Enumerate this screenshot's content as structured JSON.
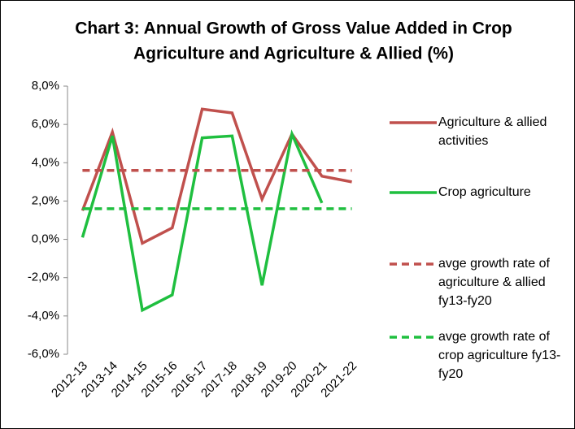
{
  "chart_data": {
    "type": "line",
    "title": [
      "Chart 3: Annual Growth of Gross Value Added in Crop",
      "Agriculture and Agriculture & Allied (%)"
    ],
    "categories": [
      "2012-13",
      "2013-14",
      "2014-15",
      "2015-16",
      "2016-17",
      "2017-18",
      "2018-19",
      "2019-20",
      "2020-21",
      "2021-22"
    ],
    "series": [
      {
        "name": "Agriculture & allied activities",
        "color": "#c0504d",
        "dash": false,
        "values": [
          1.5,
          5.6,
          -0.2,
          0.6,
          6.8,
          6.6,
          2.1,
          5.5,
          3.3,
          3.0
        ]
      },
      {
        "name": "Crop agriculture",
        "color": "#1fbf3f",
        "dash": false,
        "values": [
          0.1,
          5.4,
          -3.7,
          -2.9,
          5.3,
          5.4,
          -2.4,
          5.5,
          1.9,
          null
        ]
      },
      {
        "name": "avge growth rate of agriculture & allied fy13-fy20",
        "color": "#c0504d",
        "dash": true,
        "values": [
          3.6,
          3.6,
          3.6,
          3.6,
          3.6,
          3.6,
          3.6,
          3.6,
          3.6,
          3.6
        ]
      },
      {
        "name": "avge growth rate of crop agriculture fy13-fy20",
        "color": "#1fbf3f",
        "dash": true,
        "values": [
          1.6,
          1.6,
          1.6,
          1.6,
          1.6,
          1.6,
          1.6,
          1.6,
          1.6,
          1.6
        ]
      }
    ],
    "ylim": [
      -6,
      8
    ],
    "yticks": [
      {
        "value": -6,
        "label": "-6,0%"
      },
      {
        "value": -4,
        "label": "-4,0%"
      },
      {
        "value": -2,
        "label": "-2,0%"
      },
      {
        "value": 0,
        "label": "0,0%"
      },
      {
        "value": 2,
        "label": "2,0%"
      },
      {
        "value": 4,
        "label": "4,0%"
      },
      {
        "value": 6,
        "label": "6,0%"
      },
      {
        "value": 8,
        "label": "8,0%"
      }
    ],
    "grid": false,
    "legend": "right"
  }
}
